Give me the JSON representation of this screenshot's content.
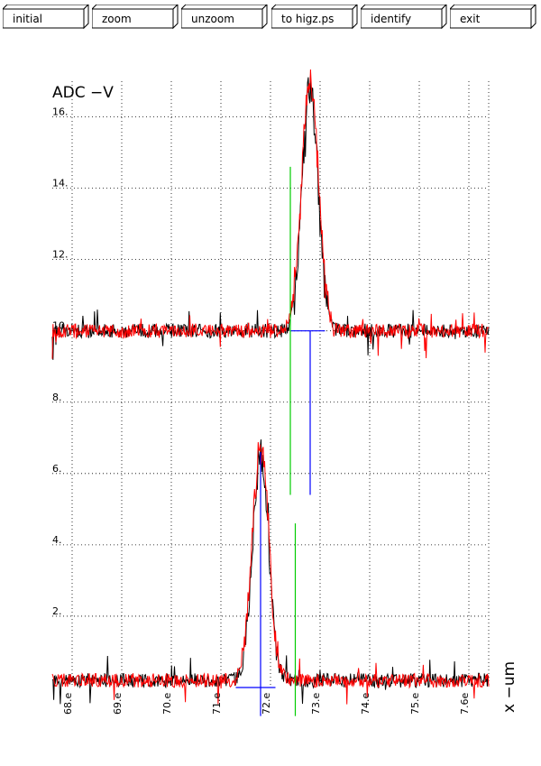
{
  "toolbar": {
    "buttons": [
      {
        "label": "initial"
      },
      {
        "label": "zoom"
      },
      {
        "label": "unzoom"
      },
      {
        "label": "to higz.ps"
      },
      {
        "label": "identify"
      },
      {
        "label": "exit"
      }
    ]
  },
  "chart_data": {
    "type": "line",
    "ylabel": "ADC  −V",
    "xlabel": "x  −um",
    "xlim": [
      67.6,
      76.4
    ],
    "ylim": [
      0,
      17
    ],
    "x_ticks": [
      "68.e",
      "69.e",
      "70.e",
      "71.e",
      "72.e",
      "73.e",
      "74.e",
      "75.e",
      "7.6e"
    ],
    "y_ticks": [
      "2.",
      "4.",
      "6.",
      "8.",
      "10.",
      "12.",
      "14.",
      "16."
    ],
    "y_tick_values": [
      2,
      4,
      6,
      8,
      10,
      12,
      14,
      16
    ],
    "grid": true,
    "colors": {
      "trace_a": "#000000",
      "trace_b": "#ff0000",
      "marker_blue": "#0000ff",
      "marker_green": "#00cc00"
    },
    "series": [
      {
        "name": "",
        "color": "#000000",
        "baseline": 10.0,
        "noise": 0.2,
        "peak": {
          "center": 72.8,
          "height": 6.8,
          "width": 0.16
        },
        "offset_baseline": 0.2,
        "peak2": {
          "center": 71.8,
          "height": 6.3,
          "width": 0.16
        }
      },
      {
        "name": "",
        "color": "#ff0000",
        "baseline": 10.0,
        "noise": 0.2,
        "peak": {
          "center": 72.8,
          "height": 7.0,
          "width": 0.17
        },
        "offset_baseline": 0.2,
        "peak2": {
          "center": 71.8,
          "height": 6.6,
          "width": 0.17
        }
      }
    ],
    "markers": [
      {
        "type": "hline",
        "color": "#0000ff",
        "y": 10.0,
        "x_from": 72.4,
        "x_to": 73.1
      },
      {
        "type": "vline",
        "color": "#0000ff",
        "x": 72.8,
        "y_from": 5.4,
        "y_to": 10.0
      },
      {
        "type": "vline",
        "color": "#00cc00",
        "x": 72.4,
        "y_from": 5.4,
        "y_to": 14.6
      },
      {
        "type": "hline",
        "color": "#0000ff",
        "y": 0.0,
        "x_from": 71.3,
        "x_to": 72.1
      },
      {
        "type": "vline",
        "color": "#0000ff",
        "x": 71.8,
        "y_from": -0.8,
        "y_to": 6.6
      },
      {
        "type": "vline",
        "color": "#00cc00",
        "x": 72.5,
        "y_from": -0.8,
        "y_to": 4.6
      }
    ]
  }
}
